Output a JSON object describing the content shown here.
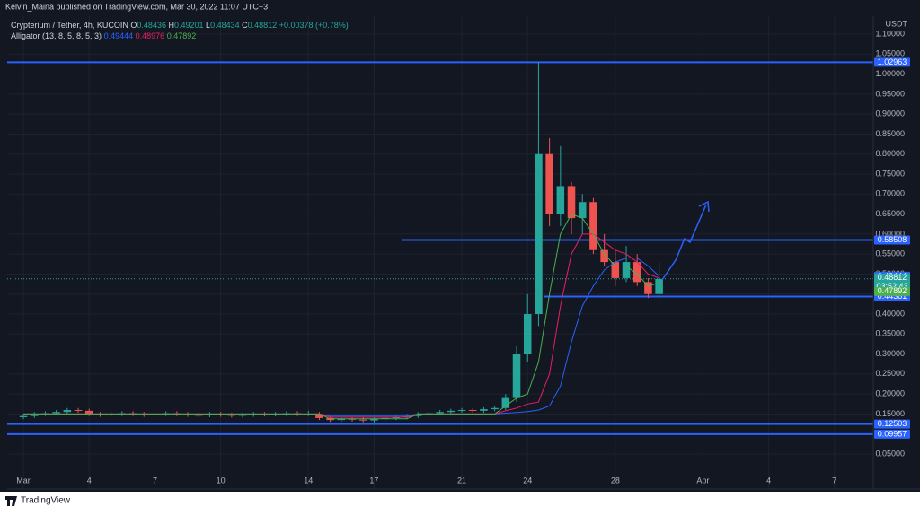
{
  "chart_data": {
    "type": "candlestick",
    "attribution": "Kelvin_Maina published on TradingView.com, Mar 30, 2022 11:07 UTC+3",
    "symbol": "Crypterium / Tether, 4h, KUCOIN",
    "ohlc_legend": [
      {
        "key": "O",
        "value": 0.48436
      },
      {
        "key": "H",
        "value": 0.49201
      },
      {
        "key": "L",
        "value": 0.48434
      },
      {
        "key": "C",
        "value": 0.48812
      }
    ],
    "change": "+0.00378 (+0.78%)",
    "indicator": "Alligator (13, 8, 5, 8, 5, 3)",
    "currency": "USDT",
    "footer": "TradingView",
    "up_color": "#26a69a",
    "down_color": "#ef5350",
    "level_color": "#2962ff",
    "x": [
      1,
      1.5,
      2,
      2.5,
      3,
      3.5,
      4,
      4.5,
      5,
      5.5,
      6,
      6.5,
      7,
      7.5,
      8,
      8.5,
      9,
      9.5,
      10,
      10.5,
      11,
      11.5,
      12,
      12.5,
      13,
      13.5,
      14,
      14.5,
      15,
      15.5,
      16,
      16.5,
      17,
      17.5,
      18,
      18.5,
      19,
      19.5,
      20,
      20.5,
      21,
      21.5,
      22,
      22.5,
      23,
      23.5,
      24,
      24.5,
      25,
      25.5,
      26,
      26.5,
      27,
      27.5,
      28,
      28.5,
      29,
      29.5,
      30
    ],
    "candles": [
      [
        0.142,
        0.15,
        0.137,
        0.145
      ],
      [
        0.145,
        0.155,
        0.14,
        0.15
      ],
      [
        0.15,
        0.157,
        0.145,
        0.152
      ],
      [
        0.152,
        0.16,
        0.147,
        0.155
      ],
      [
        0.155,
        0.165,
        0.15,
        0.16
      ],
      [
        0.16,
        0.165,
        0.153,
        0.158
      ],
      [
        0.158,
        0.163,
        0.145,
        0.15
      ],
      [
        0.15,
        0.155,
        0.143,
        0.148
      ],
      [
        0.148,
        0.155,
        0.143,
        0.15
      ],
      [
        0.15,
        0.157,
        0.145,
        0.152
      ],
      [
        0.152,
        0.157,
        0.145,
        0.15
      ],
      [
        0.15,
        0.155,
        0.143,
        0.148
      ],
      [
        0.148,
        0.155,
        0.143,
        0.15
      ],
      [
        0.15,
        0.157,
        0.145,
        0.152
      ],
      [
        0.152,
        0.157,
        0.145,
        0.15
      ],
      [
        0.15,
        0.155,
        0.143,
        0.148
      ],
      [
        0.148,
        0.153,
        0.142,
        0.147
      ],
      [
        0.147,
        0.155,
        0.142,
        0.15
      ],
      [
        0.15,
        0.155,
        0.143,
        0.148
      ],
      [
        0.148,
        0.153,
        0.141,
        0.146
      ],
      [
        0.146,
        0.153,
        0.141,
        0.148
      ],
      [
        0.148,
        0.155,
        0.143,
        0.15
      ],
      [
        0.15,
        0.155,
        0.144,
        0.149
      ],
      [
        0.149,
        0.155,
        0.144,
        0.15
      ],
      [
        0.15,
        0.157,
        0.145,
        0.152
      ],
      [
        0.152,
        0.157,
        0.145,
        0.15
      ],
      [
        0.15,
        0.158,
        0.145,
        0.15
      ],
      [
        0.15,
        0.155,
        0.135,
        0.14
      ],
      [
        0.14,
        0.145,
        0.13,
        0.135
      ],
      [
        0.135,
        0.143,
        0.13,
        0.138
      ],
      [
        0.138,
        0.143,
        0.131,
        0.136
      ],
      [
        0.136,
        0.141,
        0.129,
        0.134
      ],
      [
        0.134,
        0.143,
        0.129,
        0.138
      ],
      [
        0.138,
        0.145,
        0.133,
        0.14
      ],
      [
        0.14,
        0.147,
        0.135,
        0.142
      ],
      [
        0.142,
        0.15,
        0.137,
        0.145
      ],
      [
        0.145,
        0.155,
        0.14,
        0.15
      ],
      [
        0.15,
        0.157,
        0.145,
        0.152
      ],
      [
        0.152,
        0.16,
        0.147,
        0.155
      ],
      [
        0.155,
        0.163,
        0.15,
        0.158
      ],
      [
        0.158,
        0.165,
        0.153,
        0.16
      ],
      [
        0.16,
        0.165,
        0.153,
        0.158
      ],
      [
        0.158,
        0.167,
        0.153,
        0.162
      ],
      [
        0.162,
        0.17,
        0.157,
        0.165
      ],
      [
        0.165,
        0.2,
        0.16,
        0.19
      ],
      [
        0.19,
        0.32,
        0.18,
        0.3
      ],
      [
        0.3,
        0.45,
        0.28,
        0.4
      ],
      [
        0.4,
        1.03,
        0.37,
        0.8
      ],
      [
        0.8,
        0.84,
        0.62,
        0.65
      ],
      [
        0.65,
        0.82,
        0.62,
        0.72
      ],
      [
        0.72,
        0.73,
        0.6,
        0.64
      ],
      [
        0.64,
        0.7,
        0.6,
        0.68
      ],
      [
        0.68,
        0.69,
        0.55,
        0.56
      ],
      [
        0.56,
        0.6,
        0.52,
        0.53
      ],
      [
        0.53,
        0.56,
        0.47,
        0.49
      ],
      [
        0.49,
        0.57,
        0.48,
        0.53
      ],
      [
        0.53,
        0.55,
        0.47,
        0.48
      ],
      [
        0.48,
        0.49,
        0.44,
        0.45
      ],
      [
        0.45,
        0.53,
        0.44,
        0.488
      ]
    ],
    "last_price": 0.48812,
    "countdown": "03:52:43",
    "series": [
      {
        "color": "#2962ff",
        "last": 0.49444,
        "values": [
          0.15,
          0.15,
          0.15,
          0.15,
          0.15,
          0.15,
          0.15,
          0.15,
          0.15,
          0.15,
          0.15,
          0.15,
          0.15,
          0.15,
          0.15,
          0.15,
          0.15,
          0.15,
          0.15,
          0.15,
          0.15,
          0.15,
          0.15,
          0.15,
          0.15,
          0.15,
          0.15,
          0.15,
          0.145,
          0.145,
          0.145,
          0.145,
          0.145,
          0.145,
          0.145,
          0.145,
          0.15,
          0.15,
          0.15,
          0.15,
          0.15,
          0.15,
          0.15,
          0.15,
          0.152,
          0.154,
          0.156,
          0.16,
          0.17,
          0.22,
          0.33,
          0.42,
          0.47,
          0.51,
          0.53,
          0.54,
          0.54,
          0.52,
          0.495
        ]
      },
      {
        "color": "#e91e63",
        "last": 0.48976,
        "values": [
          0.15,
          0.15,
          0.15,
          0.15,
          0.15,
          0.15,
          0.15,
          0.15,
          0.15,
          0.15,
          0.15,
          0.15,
          0.15,
          0.15,
          0.15,
          0.15,
          0.15,
          0.15,
          0.15,
          0.15,
          0.15,
          0.15,
          0.15,
          0.15,
          0.15,
          0.15,
          0.15,
          0.15,
          0.142,
          0.142,
          0.142,
          0.142,
          0.142,
          0.142,
          0.142,
          0.142,
          0.15,
          0.15,
          0.15,
          0.15,
          0.15,
          0.15,
          0.15,
          0.15,
          0.158,
          0.165,
          0.175,
          0.18,
          0.25,
          0.42,
          0.55,
          0.6,
          0.6,
          0.58,
          0.56,
          0.55,
          0.53,
          0.5,
          0.49
        ]
      },
      {
        "color": "#4caf50",
        "last": 0.47892,
        "values": [
          0.15,
          0.15,
          0.15,
          0.15,
          0.15,
          0.15,
          0.15,
          0.15,
          0.15,
          0.15,
          0.15,
          0.15,
          0.15,
          0.15,
          0.15,
          0.15,
          0.15,
          0.15,
          0.15,
          0.15,
          0.15,
          0.15,
          0.15,
          0.15,
          0.15,
          0.15,
          0.15,
          0.15,
          0.138,
          0.138,
          0.138,
          0.138,
          0.138,
          0.138,
          0.138,
          0.138,
          0.15,
          0.15,
          0.15,
          0.15,
          0.15,
          0.15,
          0.15,
          0.15,
          0.17,
          0.19,
          0.2,
          0.28,
          0.45,
          0.6,
          0.65,
          0.64,
          0.6,
          0.55,
          0.52,
          0.52,
          0.5,
          0.47,
          0.478
        ]
      }
    ],
    "levels": [
      1.02963,
      0.58508,
      0.44381,
      0.12503,
      0.09957
    ],
    "xlim": [
      0.26,
      39.77
    ],
    "xticks": [
      {
        "value": 1,
        "label": "Mar"
      },
      4,
      7,
      10,
      14,
      17,
      21,
      24,
      28,
      {
        "value": 32,
        "label": "Apr"
      },
      {
        "value": 35,
        "label": "4"
      },
      {
        "value": 38,
        "label": "7"
      }
    ],
    "ylim": [
      -0.0375,
      1.145
    ],
    "yticks": [
      {
        "value": 0.05,
        "label": "0.05000"
      },
      {
        "value": 0.1,
        "label": "0.10000"
      },
      {
        "value": 0.15,
        "label": "0.15000"
      },
      {
        "value": 0.2,
        "label": "0.20000"
      },
      {
        "value": 0.25,
        "label": "0.25000"
      },
      {
        "value": 0.3,
        "label": "0.30000"
      },
      {
        "value": 0.35,
        "label": "0.35000"
      },
      {
        "value": 0.4,
        "label": "0.40000"
      },
      {
        "value": 0.45,
        "label": "0.45000"
      },
      {
        "value": 0.5,
        "label": "0.50000"
      },
      {
        "value": 0.55,
        "label": "0.55000"
      },
      {
        "value": 0.6,
        "label": "0.60000"
      },
      {
        "value": 0.65,
        "label": "0.65000"
      },
      {
        "value": 0.7,
        "label": "0.70000"
      },
      {
        "value": 0.75,
        "label": "0.75000"
      },
      {
        "value": 0.8,
        "label": "0.80000"
      },
      {
        "value": 0.85,
        "label": "0.85000"
      },
      {
        "value": 0.9,
        "label": "0.90000"
      },
      {
        "value": 0.95,
        "label": "0.95000"
      },
      {
        "value": 1.0,
        "label": "1.00000"
      },
      {
        "value": 1.05,
        "label": "1.05000"
      },
      {
        "value": 1.1,
        "label": "1.10000"
      }
    ],
    "grid": true
  }
}
